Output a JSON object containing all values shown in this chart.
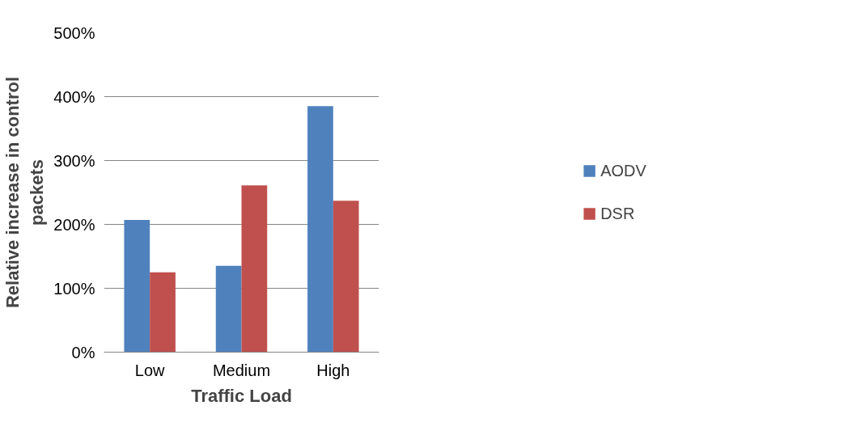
{
  "chart_data": {
    "type": "bar",
    "xlabel": "Traffic Load",
    "ylabel": "Relative increase in control packets",
    "categories": [
      "Low",
      "Medium",
      "High"
    ],
    "series": [
      {
        "name": "AODV",
        "color": "#4f81bd",
        "values": [
          207,
          135,
          385
        ]
      },
      {
        "name": "DSR",
        "color": "#c0504d",
        "values": [
          125,
          261,
          237
        ]
      }
    ],
    "ylim": [
      0,
      500
    ],
    "yticks": [
      {
        "value": 0,
        "label": "0%"
      },
      {
        "value": 100,
        "label": "100%"
      },
      {
        "value": 200,
        "label": "200%"
      },
      {
        "value": 300,
        "label": "300%"
      },
      {
        "value": 400,
        "label": "400%"
      },
      {
        "value": 500,
        "label": "500%"
      }
    ],
    "grid": "y",
    "legend": "right"
  }
}
